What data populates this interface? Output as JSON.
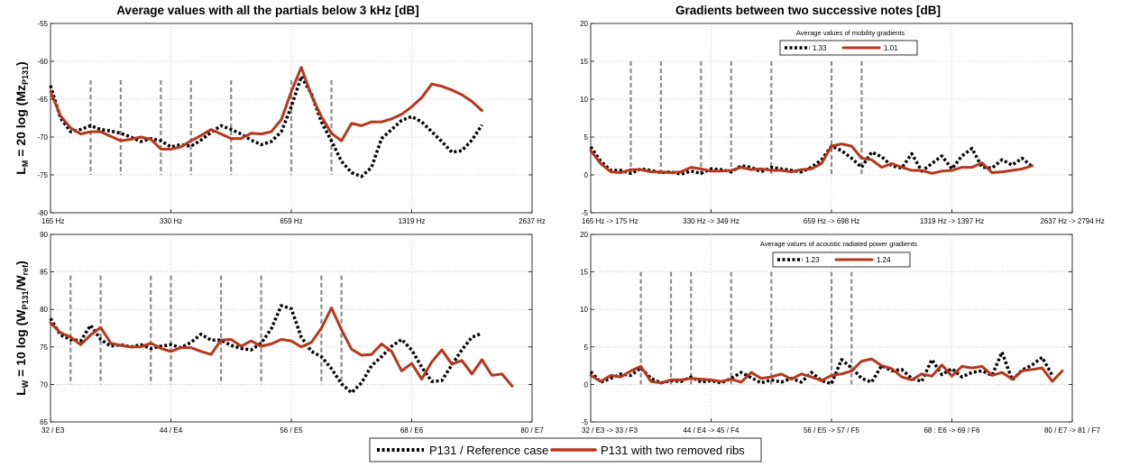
{
  "legend": {
    "series": [
      {
        "name": "P131 / Reference case",
        "color": "#000000",
        "style": "dotted"
      },
      {
        "name": "P131 with two removed ribs",
        "color": "#b5371c",
        "style": "solid"
      }
    ]
  },
  "chart_data": [
    {
      "id": "top-left",
      "type": "line",
      "title": "Average values with all the partials below 3 kHz [dB]",
      "ylabel": "L_M = 20 log (Mz_P131)",
      "ylabel_parts": {
        "main": "L",
        "sub1": "M",
        "mid": " = 20 log (Mz",
        "sub2": "P131",
        "end": ")"
      },
      "xlim": [
        0,
        48
      ],
      "ylim": [
        -80,
        -55
      ],
      "yticks": [
        -80,
        -75,
        -70,
        -65,
        -60,
        -55
      ],
      "xticks": [
        {
          "x": 0,
          "label": "165 Hz"
        },
        {
          "x": 12,
          "label": "330 Hz"
        },
        {
          "x": 24,
          "label": "659 Hz"
        },
        {
          "x": 36,
          "label": "1319 Hz"
        },
        {
          "x": 48,
          "label": "2637 Hz"
        }
      ],
      "vlines": [
        4,
        7,
        11,
        14,
        18,
        24,
        28
      ],
      "series": [
        {
          "values": [
            -63.2,
            -67.5,
            -69.3,
            -69.0,
            -68.5,
            -69.0,
            -69.2,
            -69.5,
            -70.0,
            -70.6,
            -70.2,
            -70.5,
            -71.3,
            -71.0,
            -71.2,
            -70.4,
            -69.4,
            -68.5,
            -69.0,
            -69.6,
            -70.4,
            -71.0,
            -70.6,
            -69.3,
            -66.0,
            -62.0,
            -64.3,
            -68.0,
            -70.5,
            -73.2,
            -74.7,
            -75.2,
            -74.0,
            -70.2,
            -69.0,
            -67.8,
            -67.3,
            -68.0,
            -69.3,
            -70.6,
            -72.0,
            -71.8,
            -70.4,
            -68.4
          ]
        },
        {
          "values": [
            -64.0,
            -67.2,
            -68.8,
            -69.6,
            -69.3,
            -69.3,
            -69.9,
            -70.5,
            -70.3,
            -70.0,
            -70.3,
            -71.6,
            -71.6,
            -71.3,
            -70.5,
            -69.8,
            -69.0,
            -69.6,
            -70.2,
            -70.2,
            -69.5,
            -69.6,
            -69.3,
            -67.7,
            -64.0,
            -60.8,
            -64.5,
            -67.3,
            -69.5,
            -70.5,
            -68.2,
            -68.5,
            -68.0,
            -68.0,
            -67.6,
            -67.0,
            -66.0,
            -64.8,
            -63.0,
            -63.3,
            -63.8,
            -64.4,
            -65.3,
            -66.5
          ]
        }
      ]
    },
    {
      "id": "top-right",
      "type": "line",
      "title": "Gradients between two successive notes [dB]",
      "legend_title": "Average values of mobility gradients",
      "legend_values": [
        "1.33",
        "1.01"
      ],
      "xlim": [
        0,
        48
      ],
      "ylim": [
        -5,
        20
      ],
      "yticks": [
        -5,
        0,
        5,
        10,
        15,
        20
      ],
      "xticks": [
        {
          "x": 0,
          "label": "165 Hz -> 175 Hz"
        },
        {
          "x": 12,
          "label": "330 Hz -> 349 Hz"
        },
        {
          "x": 24,
          "label": "659 Hz -> 698 Hz"
        },
        {
          "x": 36,
          "label": "1319 Hz -> 1397 Hz"
        },
        {
          "x": 48,
          "label": "2637 Hz -> 2794 Hz"
        }
      ],
      "vlines": [
        4,
        7,
        11,
        14,
        18,
        24,
        27
      ],
      "series": [
        {
          "values": [
            3.7,
            1.8,
            0.6,
            0.6,
            0.2,
            0.8,
            0.6,
            0.3,
            0.4,
            0.1,
            0.5,
            0.2,
            0.8,
            0.7,
            0.4,
            1.2,
            1.0,
            0.4,
            1.0,
            0.8,
            0.6,
            0.4,
            1.0,
            2.0,
            3.8,
            3.2,
            2.2,
            1.0,
            3.0,
            2.4,
            1.2,
            0.9,
            2.8,
            0.5,
            1.5,
            2.5,
            0.8,
            2.5,
            3.5,
            1.0,
            0.9,
            2.0,
            1.3,
            2.2,
            1.1
          ]
        },
        {
          "values": [
            3.2,
            1.5,
            0.4,
            0.3,
            0.7,
            0.7,
            0.4,
            0.4,
            0.3,
            0.4,
            1.0,
            0.8,
            0.5,
            0.5,
            0.6,
            1.0,
            0.7,
            0.8,
            0.6,
            0.6,
            0.4,
            0.7,
            0.8,
            1.5,
            3.8,
            4.1,
            3.8,
            2.2,
            2.0,
            1.0,
            1.5,
            1.0,
            0.6,
            0.6,
            0.2,
            0.5,
            0.6,
            1.0,
            1.0,
            1.6,
            0.3,
            0.4,
            0.6,
            0.8,
            1.2
          ]
        }
      ]
    },
    {
      "id": "bottom-left",
      "type": "line",
      "title": "",
      "ylabel": "L_W = 10 log (W_P131/W_ref)",
      "ylabel_parts": {
        "main": "L",
        "sub1": "W",
        "mid": " = 10 log (W",
        "sub2": "P131",
        "mid2": "/W",
        "sub3": "ref",
        "end": ")"
      },
      "xlim": [
        0,
        48
      ],
      "ylim": [
        65,
        90
      ],
      "yticks": [
        65,
        70,
        75,
        80,
        85,
        90
      ],
      "xticks": [
        {
          "x": 0,
          "label": "32 / E3"
        },
        {
          "x": 12,
          "label": "44 / E4"
        },
        {
          "x": 24,
          "label": "56 / E5"
        },
        {
          "x": 36,
          "label": "68 / E6"
        },
        {
          "x": 48,
          "label": "80 / E7"
        }
      ],
      "vlines": [
        2,
        5,
        10,
        12,
        17,
        21,
        27,
        29
      ],
      "series": [
        {
          "values": [
            78.8,
            76.6,
            76.0,
            75.8,
            77.9,
            76.0,
            75.1,
            75.3,
            75.0,
            75.3,
            74.8,
            75.1,
            75.3,
            74.9,
            75.6,
            76.7,
            75.9,
            75.9,
            75.2,
            74.8,
            74.6,
            75.5,
            77.4,
            80.5,
            80.1,
            76.3,
            74.4,
            73.7,
            72.1,
            70.1,
            68.9,
            70.2,
            72.5,
            73.7,
            75.1,
            76.0,
            74.6,
            72.3,
            70.4,
            70.5,
            72.6,
            74.6,
            76.3,
            76.8
          ]
        },
        {
          "values": [
            78.2,
            76.9,
            76.3,
            75.3,
            76.6,
            77.6,
            75.5,
            75.2,
            75.0,
            75.0,
            75.5,
            74.8,
            74.4,
            74.9,
            74.9,
            74.4,
            74.0,
            75.9,
            76.0,
            75.1,
            75.8,
            75.1,
            75.4,
            76.0,
            75.8,
            75.0,
            75.6,
            77.5,
            80.2,
            77.3,
            74.7,
            73.9,
            74.0,
            75.4,
            74.4,
            71.8,
            72.8,
            70.7,
            73.0,
            74.6,
            72.7,
            73.2,
            71.4,
            73.3,
            71.2,
            71.4,
            69.8
          ]
        }
      ]
    },
    {
      "id": "bottom-right",
      "type": "line",
      "title": "",
      "legend_title": "Average values of acoustic radiated power gradients",
      "legend_values": [
        "1.23",
        "1.24"
      ],
      "xlim": [
        0,
        48
      ],
      "ylim": [
        -5,
        20
      ],
      "yticks": [
        -5,
        0,
        5,
        10,
        15,
        20
      ],
      "xticks": [
        {
          "x": 0,
          "label": "32 / E3 -> 33 / F3"
        },
        {
          "x": 12,
          "label": "44 / E4 -> 45 / F4"
        },
        {
          "x": 24,
          "label": "56 / E5 -> 57 / F5"
        },
        {
          "x": 36,
          "label": "68 : E6 -> 69 / F6"
        },
        {
          "x": 48,
          "label": "80 / E7 -> 81 / F7"
        }
      ],
      "vlines": [
        5,
        8,
        10,
        14,
        18,
        24,
        26
      ],
      "series": [
        {
          "values": [
            1.7,
            0.3,
            0.8,
            1.4,
            1.2,
            2.2,
            0.8,
            0.2,
            0.5,
            0.4,
            1.0,
            0.3,
            0.5,
            0.2,
            0.8,
            1.6,
            0.9,
            0.2,
            0.6,
            0.3,
            0.8,
            0.3,
            1.6,
            0.5,
            0.1,
            3.3,
            2.2,
            0.8,
            0.3,
            2.5,
            1.8,
            2.0,
            0.8,
            0.4,
            3.3,
            1.3,
            2.1,
            1.0,
            1.6,
            1.8,
            1.2,
            4.3,
            0.6,
            1.9,
            2.6,
            3.6,
            1.2
          ]
        },
        {
          "values": [
            1.2,
            0.4,
            1.2,
            1.0,
            1.8,
            2.4,
            0.4,
            0.2,
            0.6,
            0.6,
            0.8,
            0.7,
            0.6,
            0.4,
            0.7,
            0.3,
            1.6,
            0.8,
            1.0,
            1.4,
            0.7,
            1.4,
            1.0,
            0.5,
            1.2,
            1.4,
            1.8,
            3.1,
            3.4,
            2.5,
            2.1,
            1.0,
            0.6,
            1.4,
            1.1,
            2.6,
            1.1,
            2.4,
            2.2,
            2.4,
            1.2,
            1.6,
            0.7,
            1.8,
            2.0,
            2.2,
            0.4,
            1.8
          ]
        }
      ]
    }
  ]
}
